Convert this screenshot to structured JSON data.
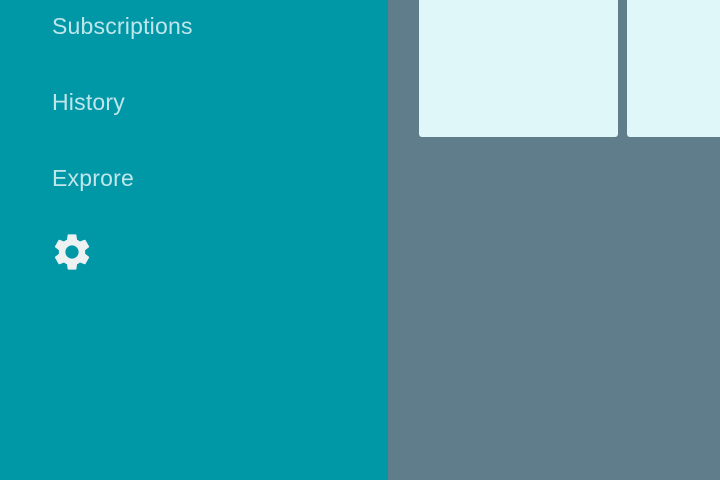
{
  "colors": {
    "drawer_background": "#0097a7",
    "content_background": "#607d8b",
    "nav_text": "#bfe6ea",
    "settings_icon": "#eef1f2",
    "card_background": "#e0f7fa"
  },
  "nav_drawer": {
    "items": [
      {
        "label": "Subscriptions"
      },
      {
        "label": "History"
      },
      {
        "label": "Exprore"
      }
    ],
    "settings": {
      "icon": "gear-icon"
    }
  },
  "content": {
    "cards": [
      {
        "id": "card-1"
      },
      {
        "id": "card-2"
      }
    ]
  }
}
